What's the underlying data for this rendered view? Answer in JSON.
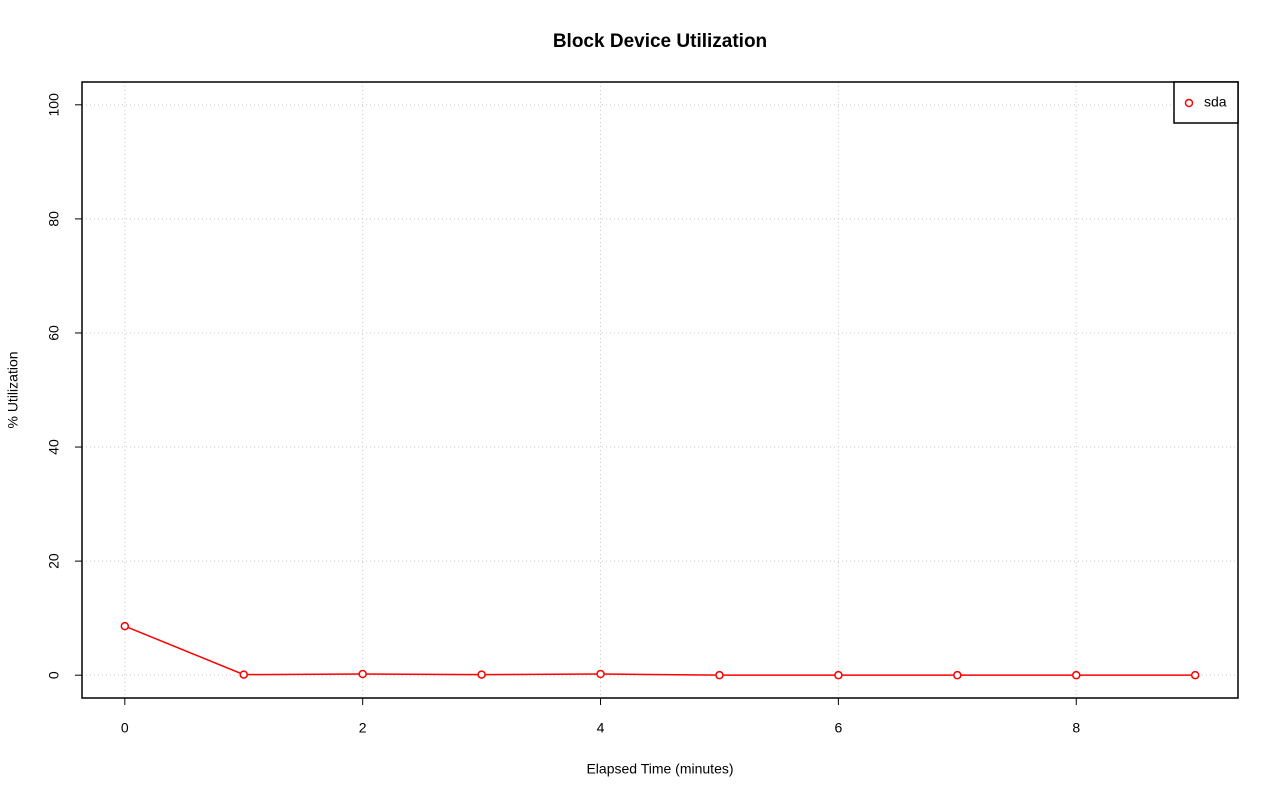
{
  "chart_data": {
    "type": "line",
    "title": "Block Device Utilization",
    "x_label": "Elapsed Time (minutes)",
    "y_label": "% Utilization",
    "x": [
      0,
      1,
      2,
      3,
      4,
      5,
      6,
      7,
      8,
      9
    ],
    "series": [
      {
        "name": "sda",
        "color": "#ff0000",
        "values": [
          8.6,
          0.1,
          0.2,
          0.1,
          0.2,
          0,
          0,
          0,
          0,
          0
        ]
      }
    ],
    "xlim": [
      -0.36,
      9.36
    ],
    "xticks": [
      0,
      2,
      4,
      6,
      8
    ],
    "ylim": [
      -4,
      104
    ],
    "yticks": [
      0,
      20,
      40,
      60,
      80,
      100
    ],
    "grid": true,
    "legend": "topright"
  }
}
